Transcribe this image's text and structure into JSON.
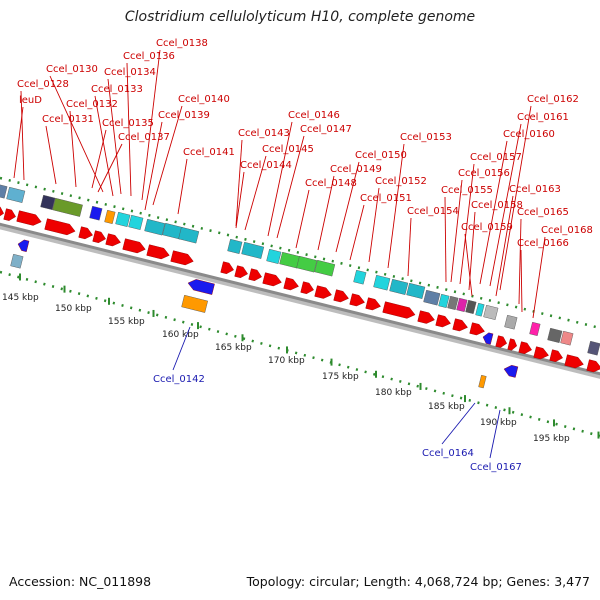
{
  "title": "Clostridium cellulolyticum H10, complete genome",
  "accession": "Accession: NC_011898",
  "summary": "Topology: circular; Length: 4,068,724 bp; Genes: 3,477",
  "colors": {
    "forward_arrow": "#ee0000",
    "reverse_arrow": "#1a1aee",
    "label_forward": "#cc0000",
    "label_reverse": "#1a1ab0",
    "backbone": "#8a8a8a",
    "tick": "#2e8b2e"
  },
  "forward_labels": [
    "Ccel_0138",
    "Ccel_0136",
    "Ccel_0130",
    "Ccel_0134",
    "Ccel_0128",
    "Ccel_0133",
    "leuD",
    "Ccel_0132",
    "Ccel_0131",
    "Ccel_0135",
    "Ccel_0137",
    "Ccel_0140",
    "Ccel_0139",
    "Ccel_0141",
    "Ccel_0143",
    "Ccel_0146",
    "Ccel_0147",
    "Ccel_0145",
    "Ccel_0144",
    "Ccel_0148",
    "Ccel_0150",
    "Ccel_0149",
    "Ccel_0153",
    "Ccel_0152",
    "Ccel_0151",
    "Ccel_0154",
    "Ccel_0162",
    "Ccel_0161",
    "Ccel_0160",
    "Ccel_0157",
    "Ccel_0156",
    "Ccel_0155",
    "Ccel_0158",
    "Ccel_0163",
    "Ccel_0159",
    "Ccel_0165",
    "Ccel_0168",
    "Ccel_0166"
  ],
  "reverse_labels": [
    "Ccel_0142",
    "Ccel_0164",
    "Ccel_0167"
  ],
  "scale_ticks": [
    "145 kbp",
    "150 kbp",
    "155 kbp",
    "160 kbp",
    "165 kbp",
    "170 kbp",
    "175 kbp",
    "180 kbp",
    "185 kbp",
    "190 kbp",
    "195 kbp"
  ]
}
